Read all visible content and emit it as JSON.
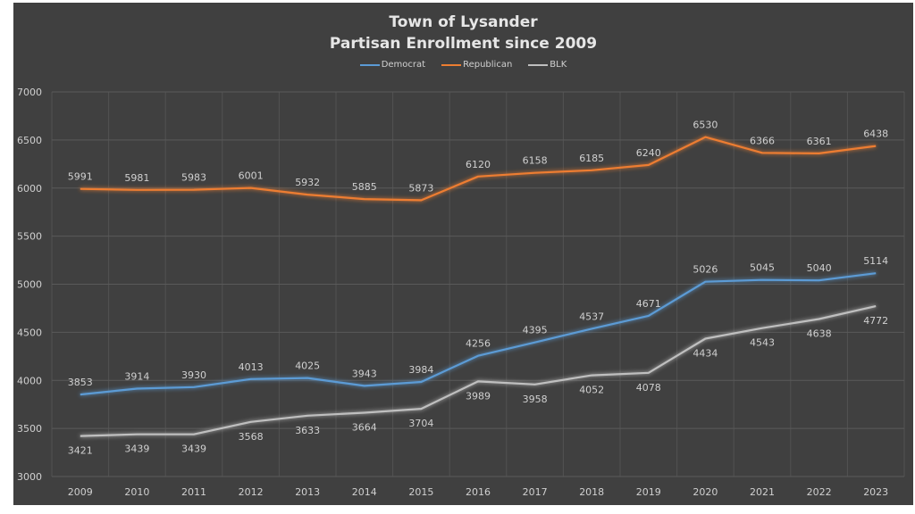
{
  "chart_data": {
    "type": "line",
    "title": "Town of Lysander",
    "subtitle": "Partisan Enrollment since 2009",
    "xlabel": "",
    "ylabel": "",
    "categories": [
      "2009",
      "2010",
      "2011",
      "2012",
      "2013",
      "2014",
      "2015",
      "2016",
      "2017",
      "2018",
      "2019",
      "2020",
      "2021",
      "2022",
      "2023"
    ],
    "ylim": [
      3000,
      7000
    ],
    "yticks": [
      3000,
      3500,
      4000,
      4500,
      5000,
      5500,
      6000,
      6500,
      7000
    ],
    "grid": true,
    "legend_position": "top",
    "series": [
      {
        "name": "Democrat",
        "color": "#5b9bd5",
        "label_pos": "above",
        "values": [
          3853,
          3914,
          3930,
          4013,
          4025,
          3943,
          3984,
          4256,
          4395,
          4537,
          4671,
          5026,
          5045,
          5040,
          5114
        ]
      },
      {
        "name": "Republican",
        "color": "#ed7d31",
        "label_pos": "above",
        "values": [
          5991,
          5981,
          5983,
          6001,
          5932,
          5885,
          5873,
          6120,
          6158,
          6185,
          6240,
          6530,
          6366,
          6361,
          6438
        ]
      },
      {
        "name": "BLK",
        "color": "#bfbfbf",
        "label_pos": "below",
        "values": [
          3421,
          3439,
          3439,
          3568,
          3633,
          3664,
          3704,
          3989,
          3958,
          4052,
          4078,
          4434,
          4543,
          4638,
          4772
        ]
      }
    ]
  },
  "colors": {
    "background": "#404040",
    "grid": "#5a5a5a",
    "text": "#d0d0d0"
  }
}
